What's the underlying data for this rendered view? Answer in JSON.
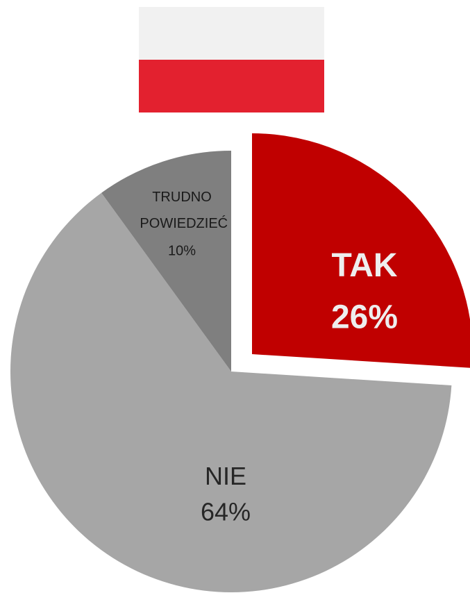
{
  "chart_data": {
    "type": "pie",
    "categories": [
      "TAK",
      "NIE",
      "TRUDNO POWIEDZIEĆ"
    ],
    "values": [
      26,
      64,
      10
    ],
    "value_labels": [
      "26%",
      "64%",
      "10%"
    ],
    "colors": [
      "#c00000",
      "#a6a6a6",
      "#7f7f7f"
    ]
  }
}
